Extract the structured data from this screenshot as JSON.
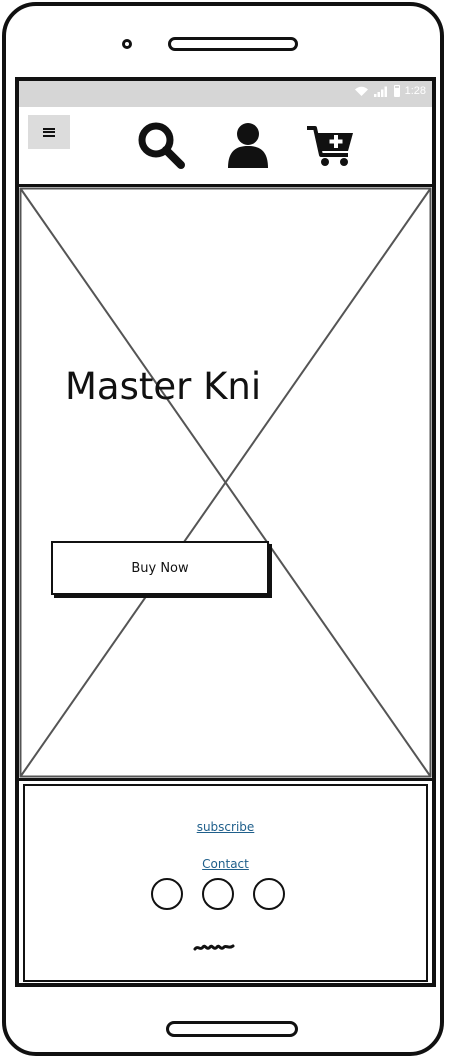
{
  "status_bar": {
    "time": "1:28",
    "icons": [
      "wifi-icon",
      "signal-icon",
      "battery-icon"
    ]
  },
  "header": {
    "menu_icon": "hamburger-menu-icon",
    "icons": [
      "search-icon",
      "user-icon",
      "cart-add-icon"
    ]
  },
  "hero": {
    "title": "Master Kni",
    "buy_button_label": "Buy Now",
    "image": "image-placeholder"
  },
  "footer": {
    "subscribe_label": "subscribe",
    "contact_label": "Contact",
    "social_icons": [
      "social-icon",
      "social-icon",
      "social-icon"
    ],
    "signature_icon": "scribble-signature-icon"
  },
  "colors": {
    "status_bar_bg": "#d6d6d6",
    "menu_button_bg": "#dcdcdc",
    "link": "#1f5f8b",
    "ink": "#111111"
  }
}
